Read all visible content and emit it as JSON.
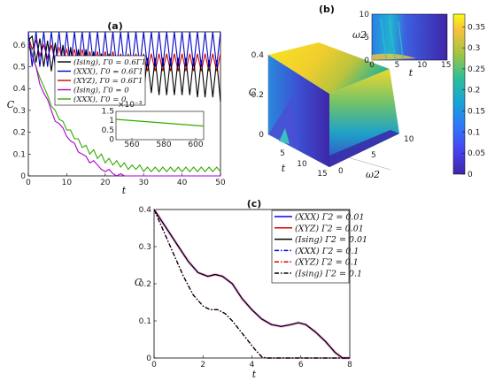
{
  "chart_data": [
    {
      "panel": "(a)",
      "type": "line",
      "xlabel": "t",
      "ylabel": "C",
      "xlim": [
        0,
        50
      ],
      "ylim": [
        0,
        0.66
      ],
      "xticks": [
        "0",
        "10",
        "20",
        "30",
        "40",
        "50"
      ],
      "yticks": [
        "0",
        "0.1",
        "0.2",
        "0.3",
        "0.4",
        "0.5",
        "0.6"
      ],
      "series": [
        {
          "name": "(Ising), Γ0 = 0.6Γ1",
          "color": "#000000",
          "x": [
            0,
            1,
            2,
            3,
            4,
            5,
            6,
            7,
            8,
            9,
            10,
            11,
            12,
            13,
            14,
            15,
            16,
            17,
            18,
            19,
            20,
            21,
            22,
            23,
            24,
            25,
            26,
            27,
            28,
            29,
            30,
            31,
            32,
            33,
            34,
            35,
            36,
            37,
            38,
            39,
            40,
            41,
            42,
            43,
            44,
            45,
            46,
            47,
            48,
            49,
            50
          ],
          "y": [
            0.62,
            0.64,
            0.52,
            0.63,
            0.5,
            0.62,
            0.48,
            0.61,
            0.46,
            0.6,
            0.45,
            0.59,
            0.44,
            0.58,
            0.43,
            0.58,
            0.42,
            0.57,
            0.41,
            0.56,
            0.4,
            0.56,
            0.4,
            0.55,
            0.39,
            0.55,
            0.39,
            0.55,
            0.38,
            0.54,
            0.38,
            0.54,
            0.38,
            0.54,
            0.37,
            0.54,
            0.37,
            0.54,
            0.37,
            0.54,
            0.37,
            0.54,
            0.37,
            0.54,
            0.36,
            0.53,
            0.36,
            0.53,
            0.36,
            0.53,
            0.34
          ]
        },
        {
          "name": "(XXX), Γ0 = 0.6Γ1",
          "color": "#0000cc",
          "x": [
            0,
            1,
            2,
            3,
            4,
            5,
            6,
            7,
            8,
            9,
            10,
            11,
            12,
            13,
            14,
            15,
            16,
            17,
            18,
            19,
            20,
            21,
            22,
            23,
            24,
            25,
            26,
            27,
            28,
            29,
            30,
            31,
            32,
            33,
            34,
            35,
            36,
            37,
            38,
            39,
            40,
            41,
            42,
            43,
            44,
            45,
            46,
            47,
            48,
            49,
            50
          ],
          "y": [
            0.66,
            0.5,
            0.66,
            0.5,
            0.66,
            0.5,
            0.66,
            0.5,
            0.66,
            0.5,
            0.66,
            0.5,
            0.66,
            0.5,
            0.66,
            0.5,
            0.66,
            0.5,
            0.66,
            0.5,
            0.66,
            0.5,
            0.66,
            0.5,
            0.66,
            0.5,
            0.66,
            0.5,
            0.66,
            0.5,
            0.66,
            0.5,
            0.66,
            0.5,
            0.66,
            0.5,
            0.66,
            0.5,
            0.66,
            0.5,
            0.66,
            0.5,
            0.66,
            0.5,
            0.66,
            0.5,
            0.66,
            0.5,
            0.66,
            0.5,
            0.66
          ]
        },
        {
          "name": "(XYZ), Γ0 = 0.6Γ1",
          "color": "#cc0000",
          "x": [
            0,
            1,
            2,
            3,
            4,
            5,
            6,
            7,
            8,
            9,
            10,
            11,
            12,
            13,
            14,
            15,
            16,
            17,
            18,
            19,
            20,
            21,
            22,
            23,
            24,
            25,
            26,
            27,
            28,
            29,
            30,
            31,
            32,
            33,
            34,
            35,
            36,
            37,
            38,
            39,
            40,
            41,
            42,
            43,
            44,
            45,
            46,
            47,
            48,
            49,
            50
          ],
          "y": [
            0.64,
            0.58,
            0.62,
            0.55,
            0.6,
            0.54,
            0.6,
            0.52,
            0.59,
            0.52,
            0.58,
            0.51,
            0.58,
            0.5,
            0.58,
            0.5,
            0.57,
            0.49,
            0.57,
            0.49,
            0.57,
            0.49,
            0.57,
            0.49,
            0.56,
            0.48,
            0.56,
            0.48,
            0.56,
            0.48,
            0.56,
            0.48,
            0.56,
            0.48,
            0.56,
            0.48,
            0.56,
            0.48,
            0.56,
            0.48,
            0.56,
            0.48,
            0.56,
            0.48,
            0.56,
            0.48,
            0.56,
            0.48,
            0.56,
            0.48,
            0.56
          ]
        },
        {
          "name": "(Ising), Γ0 = 0",
          "color": "#aa00cc",
          "x": [
            0,
            1,
            2,
            3,
            4,
            5,
            6,
            7,
            8,
            9,
            10,
            11,
            12,
            13,
            14,
            15,
            16,
            17,
            18,
            19,
            20,
            21,
            22,
            23,
            24,
            25,
            26,
            27,
            28,
            29,
            30,
            50
          ],
          "y": [
            0.6,
            0.55,
            0.5,
            0.42,
            0.38,
            0.35,
            0.3,
            0.25,
            0.24,
            0.22,
            0.18,
            0.16,
            0.15,
            0.11,
            0.1,
            0.09,
            0.06,
            0.07,
            0.05,
            0.03,
            0.02,
            0.03,
            0.01,
            0.0,
            0.01,
            0.0,
            0.0,
            0.0,
            0.0,
            0.0,
            0.0,
            0.0
          ]
        },
        {
          "name": "(XXX), Γ0 = 0",
          "color": "#33aa00",
          "x": [
            0,
            1,
            2,
            3,
            4,
            5,
            6,
            7,
            8,
            9,
            10,
            11,
            12,
            13,
            14,
            15,
            16,
            17,
            18,
            19,
            20,
            21,
            22,
            23,
            24,
            25,
            26,
            27,
            28,
            29,
            30,
            31,
            32,
            33,
            34,
            35,
            36,
            37,
            38,
            39,
            40,
            41,
            42,
            43,
            44,
            45,
            46,
            47,
            48,
            49,
            50
          ],
          "y": [
            0.62,
            0.56,
            0.5,
            0.45,
            0.41,
            0.37,
            0.32,
            0.3,
            0.26,
            0.25,
            0.21,
            0.21,
            0.17,
            0.17,
            0.13,
            0.14,
            0.1,
            0.12,
            0.08,
            0.1,
            0.06,
            0.08,
            0.05,
            0.07,
            0.04,
            0.06,
            0.03,
            0.05,
            0.03,
            0.05,
            0.02,
            0.04,
            0.02,
            0.04,
            0.02,
            0.04,
            0.02,
            0.04,
            0.02,
            0.04,
            0.02,
            0.04,
            0.02,
            0.04,
            0.02,
            0.04,
            0.02,
            0.04,
            0.02,
            0.04,
            0.02
          ]
        }
      ],
      "inset": {
        "xlim": [
          550,
          605
        ],
        "ylim": [
          0,
          0.0015
        ],
        "xticks": [
          "560",
          "580",
          "600"
        ],
        "yticks": [
          "0",
          "0.5",
          "1",
          "1.5"
        ],
        "exponent_label": "×10⁻³",
        "series": [
          {
            "color": "#33aa00",
            "x": [
              550,
              605
            ],
            "y": [
              0.00108,
              0.00072
            ]
          }
        ]
      }
    },
    {
      "panel": "(b)",
      "type": "surface",
      "xlabel": "t",
      "ylabel": "ω2",
      "zlabel": "C",
      "xticks": [
        "5",
        "10",
        "15"
      ],
      "yticks": [
        "0",
        "5",
        "10"
      ],
      "zticks": [
        "0",
        "0.2",
        "0.4"
      ],
      "colorbar_ticks": [
        "0",
        "0.05",
        "0.1",
        "0.15",
        "0.2",
        "0.25",
        "0.3",
        "0.35"
      ],
      "inset": {
        "xlabel": "t",
        "ylabel": "ω2",
        "xticks": [
          "0",
          "5",
          "10",
          "15"
        ],
        "yticks": [
          "0",
          "5",
          "10"
        ]
      }
    },
    {
      "panel": "(c)",
      "type": "line",
      "xlabel": "t",
      "ylabel": "C",
      "xlim": [
        0,
        8
      ],
      "ylim": [
        0,
        0.4
      ],
      "xticks": [
        "0",
        "2",
        "4",
        "6",
        "8"
      ],
      "yticks": [
        "0",
        "0.1",
        "0.2",
        "0.3",
        "0.4"
      ],
      "series": [
        {
          "name": "(XXX) Γ2 = 0.01",
          "color": "#0000ee",
          "dash": "solid",
          "x": [
            0,
            0.3,
            0.6,
            1.0,
            1.4,
            1.8,
            2.2,
            2.5,
            2.8,
            3.2,
            3.6,
            4.0,
            4.4,
            4.8,
            5.2,
            5.6,
            5.9,
            6.2,
            6.6,
            7.0,
            7.4,
            7.7,
            8.0
          ],
          "y": [
            0.4,
            0.37,
            0.34,
            0.3,
            0.26,
            0.23,
            0.22,
            0.225,
            0.22,
            0.2,
            0.16,
            0.13,
            0.105,
            0.09,
            0.085,
            0.09,
            0.095,
            0.09,
            0.07,
            0.045,
            0.015,
            0.0,
            0.0
          ]
        },
        {
          "name": "(XYZ) Γ2 = 0.01",
          "color": "#dd0000",
          "dash": "solid",
          "x": [
            0,
            0.3,
            0.6,
            1.0,
            1.4,
            1.8,
            2.2,
            2.5,
            2.8,
            3.2,
            3.6,
            4.0,
            4.4,
            4.8,
            5.2,
            5.6,
            5.9,
            6.2,
            6.6,
            7.0,
            7.4,
            7.7,
            8.0
          ],
          "y": [
            0.4,
            0.37,
            0.34,
            0.3,
            0.26,
            0.23,
            0.22,
            0.225,
            0.22,
            0.2,
            0.16,
            0.13,
            0.105,
            0.09,
            0.085,
            0.09,
            0.095,
            0.09,
            0.07,
            0.045,
            0.015,
            0.0,
            0.0
          ]
        },
        {
          "name": "(Ising) Γ2 = 0.01",
          "color": "#000000",
          "dash": "solid",
          "x": [
            0,
            0.3,
            0.6,
            1.0,
            1.4,
            1.8,
            2.2,
            2.5,
            2.8,
            3.2,
            3.6,
            4.0,
            4.4,
            4.8,
            5.2,
            5.6,
            5.9,
            6.2,
            6.6,
            7.0,
            7.4,
            7.7,
            8.0
          ],
          "y": [
            0.4,
            0.37,
            0.34,
            0.3,
            0.26,
            0.23,
            0.22,
            0.225,
            0.22,
            0.2,
            0.16,
            0.13,
            0.105,
            0.09,
            0.085,
            0.09,
            0.095,
            0.09,
            0.07,
            0.045,
            0.015,
            0.0,
            0.0
          ]
        },
        {
          "name": "(XXX) Γ2 = 0.1",
          "color": "#0000ee",
          "dash": "dashdot",
          "x": [
            0,
            0.4,
            0.8,
            1.2,
            1.6,
            2.0,
            2.3,
            2.6,
            2.9,
            3.2,
            3.5,
            3.8,
            4.1,
            4.4,
            4.6,
            8.0
          ],
          "y": [
            0.4,
            0.34,
            0.28,
            0.22,
            0.17,
            0.14,
            0.13,
            0.13,
            0.12,
            0.1,
            0.075,
            0.05,
            0.025,
            0.003,
            0.0,
            0.0
          ]
        },
        {
          "name": "(XYZ) Γ2 = 0.1",
          "color": "#dd0000",
          "dash": "dashdot",
          "x": [
            0,
            0.4,
            0.8,
            1.2,
            1.6,
            2.0,
            2.3,
            2.6,
            2.9,
            3.2,
            3.5,
            3.8,
            4.1,
            4.4,
            4.6,
            8.0
          ],
          "y": [
            0.4,
            0.34,
            0.28,
            0.22,
            0.17,
            0.14,
            0.13,
            0.13,
            0.12,
            0.1,
            0.075,
            0.05,
            0.025,
            0.003,
            0.0,
            0.0
          ]
        },
        {
          "name": "(Ising) Γ2 = 0.1",
          "color": "#000000",
          "dash": "dashdot",
          "x": [
            0,
            0.4,
            0.8,
            1.2,
            1.6,
            2.0,
            2.3,
            2.6,
            2.9,
            3.2,
            3.5,
            3.8,
            4.1,
            4.4,
            4.6,
            8.0
          ],
          "y": [
            0.4,
            0.34,
            0.28,
            0.22,
            0.17,
            0.14,
            0.13,
            0.13,
            0.12,
            0.1,
            0.075,
            0.05,
            0.025,
            0.003,
            0.0,
            0.0
          ]
        }
      ]
    }
  ],
  "colors": {
    "surface_dark": "#3b1f9e",
    "surface_mid": "#21a8a0",
    "surface_bright": "#f9e51e"
  }
}
